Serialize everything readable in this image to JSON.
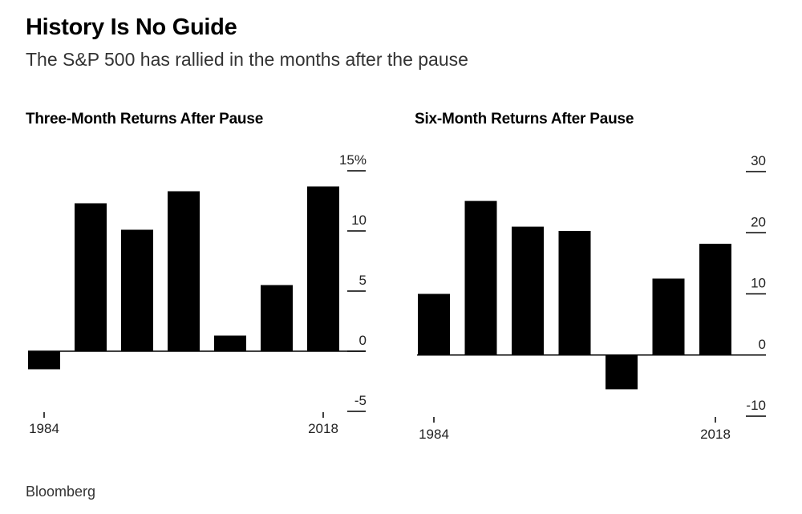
{
  "header": {
    "title": "History Is No Guide",
    "subtitle": "The S&P 500 has rallied in the months after the pause"
  },
  "source": "Bloomberg",
  "colors": {
    "bar": "#000000",
    "axis": "#000000",
    "text": "#222222"
  },
  "chart_data": [
    {
      "type": "bar",
      "title": "Three-Month Returns After Pause",
      "categories": [
        "1984",
        "",
        "",
        "",
        "",
        "",
        "2018"
      ],
      "values": [
        -1.5,
        12.3,
        10.1,
        13.3,
        1.3,
        5.5,
        13.7
      ],
      "ylim": [
        -5,
        15
      ],
      "yticks": [
        15,
        10,
        5,
        0,
        -5
      ],
      "ytick_labels": [
        "15%",
        "10",
        "5",
        "0",
        "-5"
      ],
      "x_tick_labels": [
        {
          "index": 0,
          "label": "1984"
        },
        {
          "index": 6,
          "label": "2018"
        }
      ]
    },
    {
      "type": "bar",
      "title": "Six-Month Returns After Pause",
      "categories": [
        "1984",
        "",
        "",
        "",
        "",
        "",
        "2018"
      ],
      "values": [
        10,
        25.2,
        21,
        20.3,
        -5.6,
        12.5,
        18.2
      ],
      "ylim": [
        -10,
        30
      ],
      "yticks": [
        30,
        20,
        10,
        0,
        -10
      ],
      "ytick_labels": [
        "30",
        "20",
        "10",
        "0",
        "-10"
      ],
      "x_tick_labels": [
        {
          "index": 0,
          "label": "1984"
        },
        {
          "index": 6,
          "label": "2018"
        }
      ]
    }
  ]
}
